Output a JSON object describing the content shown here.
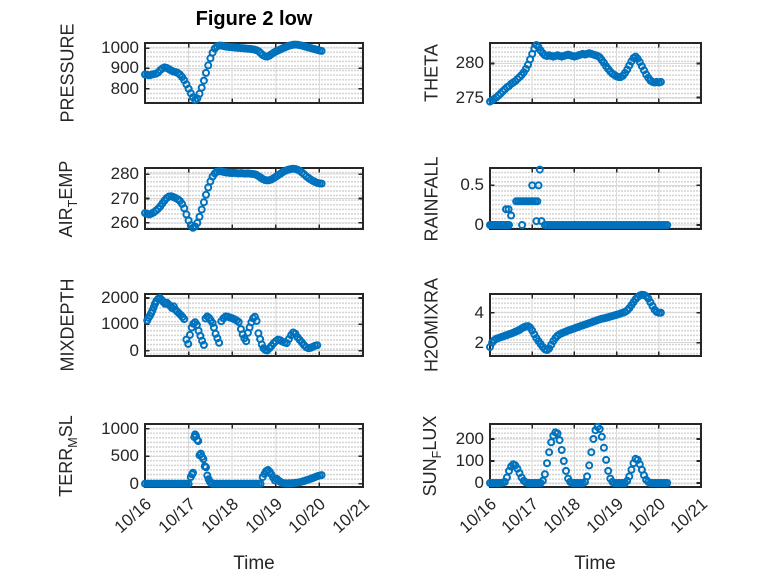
{
  "figure": {
    "title": "Figure 2 low",
    "xlabel": "Time",
    "xlim": [
      0,
      5
    ],
    "x_ticks": {
      "values": [
        0,
        1,
        2,
        3,
        4,
        5
      ],
      "labels": [
        "10/16",
        "10/17",
        "10/18",
        "10/19",
        "10/20",
        "10/21"
      ]
    },
    "marker_color": "#0072BD",
    "axis_color": "#262626",
    "grid_color": "#d9d9d9",
    "minor_dot_color": "#c7c7c7",
    "text_color": "#262626",
    "background": "#ffffff",
    "marker_style": "open-circle",
    "grid": "on",
    "minor_grid": "dotted"
  },
  "chart_data": [
    {
      "name": "PRESSURE",
      "type": "scatter",
      "row": 0,
      "col": 0,
      "ylabel_parts": [
        [
          "PRESSURE",
          false
        ]
      ],
      "ylim": [
        730,
        1025
      ],
      "yticks": [
        800,
        900,
        1000
      ],
      "x0": 0,
      "dx": 0.05,
      "y": [
        870,
        868,
        866,
        869,
        872,
        874,
        880,
        892,
        900,
        905,
        902,
        896,
        890,
        885,
        882,
        878,
        870,
        858,
        842,
        822,
        800,
        778,
        758,
        745,
        752,
        775,
        805,
        840,
        878,
        915,
        950,
        978,
        998,
        1008,
        1012,
        1012,
        1010,
        1008,
        1006,
        1005,
        1004,
        1003,
        1002,
        1001,
        1000,
        999,
        998,
        997,
        996,
        995,
        993,
        990,
        985,
        976,
        966,
        960,
        958,
        962,
        970,
        977,
        983,
        988,
        993,
        998,
        1003,
        1007,
        1011,
        1014,
        1016,
        1017,
        1016,
        1014,
        1012,
        1009,
        1006,
        1003,
        1000,
        997,
        994,
        991,
        988,
        986
      ]
    },
    {
      "name": "THETA",
      "type": "scatter",
      "row": 0,
      "col": 1,
      "ylabel_parts": [
        [
          "THETA",
          false
        ]
      ],
      "ylim": [
        274.2,
        283.0
      ],
      "yticks": [
        275,
        280
      ],
      "x0": 0,
      "dx": 0.05,
      "y": [
        274.4,
        274.6,
        274.8,
        275.0,
        275.3,
        275.6,
        275.9,
        276.2,
        276.5,
        276.7,
        277.0,
        277.2,
        277.4,
        277.7,
        278.0,
        278.3,
        278.7,
        279.2,
        279.8,
        280.6,
        281.4,
        282.2,
        282.7,
        282.4,
        281.9,
        281.5,
        281.2,
        281.1,
        281.2,
        281.1,
        281.0,
        281.1,
        281.2,
        281.1,
        281.0,
        281.1,
        281.2,
        281.3,
        281.2,
        281.1,
        281.0,
        281.1,
        281.2,
        281.3,
        281.4,
        281.3,
        281.4,
        281.5,
        281.4,
        281.3,
        281.2,
        281.1,
        280.9,
        280.5,
        280.1,
        279.6,
        279.2,
        278.8,
        278.5,
        278.3,
        278.1,
        278.0,
        278.0,
        278.2,
        278.6,
        279.1,
        279.7,
        280.3,
        280.8,
        281.0,
        280.7,
        280.2,
        279.6,
        279.0,
        278.4,
        277.9,
        277.5,
        277.3,
        277.2,
        277.3,
        277.2,
        277.3
      ]
    },
    {
      "name": "AIR_TEMP",
      "type": "scatter",
      "row": 1,
      "col": 0,
      "ylabel_parts": [
        [
          "AIR",
          false
        ],
        [
          "T",
          true
        ],
        [
          "EMP",
          false
        ]
      ],
      "ylim": [
        257.5,
        282.5
      ],
      "yticks": [
        260,
        270,
        280
      ],
      "x0": 0,
      "dx": 0.05,
      "y": [
        264.0,
        263.7,
        263.5,
        263.8,
        264.3,
        265.0,
        265.8,
        266.8,
        268.0,
        269.2,
        270.2,
        270.8,
        270.9,
        270.6,
        270.2,
        269.7,
        269.0,
        267.8,
        266.0,
        263.5,
        261.0,
        259.0,
        258.0,
        258.5,
        260.0,
        262.5,
        265.5,
        268.5,
        271.5,
        274.5,
        277.0,
        279.0,
        280.3,
        281.0,
        281.2,
        281.1,
        280.9,
        280.7,
        280.6,
        280.5,
        280.4,
        280.5,
        280.4,
        280.3,
        280.4,
        280.3,
        280.2,
        280.3,
        280.2,
        280.1,
        280.0,
        279.7,
        279.2,
        278.6,
        278.0,
        277.6,
        277.4,
        277.5,
        277.8,
        278.3,
        278.9,
        279.5,
        280.1,
        280.7,
        281.2,
        281.6,
        281.9,
        282.1,
        282.2,
        282.1,
        281.8,
        281.3,
        280.6,
        279.9,
        279.1,
        278.4,
        277.8,
        277.2,
        276.8,
        276.4,
        276.2,
        276.1
      ]
    },
    {
      "name": "RAINFALL",
      "type": "scatter",
      "row": 1,
      "col": 1,
      "ylabel_parts": [
        [
          "RAINFALL",
          false
        ]
      ],
      "ylim": [
        -0.05,
        0.72
      ],
      "yticks": [
        0,
        0.5
      ],
      "runs": [
        [
          0,
          0.45,
          0.03,
          0
        ],
        [
          1.3,
          4.2,
          0.05,
          0
        ]
      ],
      "points": [
        [
          0.38,
          0.2
        ],
        [
          0.44,
          0.2
        ],
        [
          0.5,
          0.12
        ],
        [
          0.62,
          0.3
        ],
        [
          0.67,
          0.3
        ],
        [
          0.72,
          0.3
        ],
        [
          0.77,
          0.3
        ],
        [
          0.82,
          0.3
        ],
        [
          0.87,
          0.3
        ],
        [
          0.92,
          0.3
        ],
        [
          0.97,
          0.3
        ],
        [
          1.02,
          0.3
        ],
        [
          1.07,
          0.3
        ],
        [
          1.12,
          0.3
        ],
        [
          0.76,
          0
        ],
        [
          1.0,
          0.5
        ],
        [
          1.15,
          0.5
        ],
        [
          1.18,
          0.7
        ],
        [
          1.1,
          0.05
        ],
        [
          1.22,
          0.05
        ]
      ]
    },
    {
      "name": "MIXDEPTH",
      "type": "scatter",
      "row": 2,
      "col": 0,
      "ylabel_parts": [
        [
          "MIXDEPTH",
          false
        ]
      ],
      "ylim": [
        -200,
        2150
      ],
      "yticks": [
        0,
        1000,
        2000
      ],
      "points": [
        [
          0.05,
          1150
        ],
        [
          0.08,
          1250
        ],
        [
          0.11,
          1320
        ],
        [
          0.14,
          1420
        ],
        [
          0.17,
          1520
        ],
        [
          0.2,
          1650
        ],
        [
          0.23,
          1780
        ],
        [
          0.26,
          1880
        ],
        [
          0.3,
          1960
        ],
        [
          0.34,
          2000
        ],
        [
          0.38,
          1930
        ],
        [
          0.42,
          1850
        ],
        [
          0.46,
          1780
        ],
        [
          0.5,
          1820
        ],
        [
          0.54,
          1760
        ],
        [
          0.58,
          1700
        ],
        [
          0.62,
          1620
        ],
        [
          0.66,
          1680
        ],
        [
          0.7,
          1550
        ],
        [
          0.74,
          1480
        ],
        [
          0.78,
          1420
        ],
        [
          0.82,
          1350
        ],
        [
          0.86,
          1280
        ],
        [
          0.9,
          1200
        ],
        [
          0.95,
          420
        ],
        [
          0.99,
          260
        ],
        [
          1.03,
          600
        ],
        [
          1.07,
          880
        ],
        [
          1.11,
          1020
        ],
        [
          1.15,
          1080
        ],
        [
          1.19,
          980
        ],
        [
          1.23,
          760
        ],
        [
          1.27,
          560
        ],
        [
          1.31,
          380
        ],
        [
          1.35,
          220
        ],
        [
          1.39,
          1220
        ],
        [
          1.43,
          1300
        ],
        [
          1.47,
          1240
        ],
        [
          1.51,
          1150
        ],
        [
          1.55,
          1050
        ],
        [
          1.58,
          880
        ],
        [
          1.62,
          640
        ],
        [
          1.66,
          470
        ],
        [
          1.7,
          300
        ],
        [
          1.75,
          1120
        ],
        [
          1.8,
          1230
        ],
        [
          1.85,
          1300
        ],
        [
          1.9,
          1290
        ],
        [
          1.95,
          1260
        ],
        [
          2.0,
          1230
        ],
        [
          2.05,
          1190
        ],
        [
          2.1,
          1150
        ],
        [
          2.15,
          1090
        ],
        [
          2.2,
          820
        ],
        [
          2.24,
          620
        ],
        [
          2.28,
          470
        ],
        [
          2.32,
          360
        ],
        [
          2.36,
          680
        ],
        [
          2.4,
          880
        ],
        [
          2.44,
          1080
        ],
        [
          2.48,
          1230
        ],
        [
          2.52,
          1290
        ],
        [
          2.56,
          1130
        ],
        [
          2.6,
          660
        ],
        [
          2.64,
          440
        ],
        [
          2.68,
          240
        ],
        [
          2.72,
          90
        ],
        [
          2.76,
          30
        ],
        [
          2.8,
          10
        ],
        [
          2.85,
          90
        ],
        [
          2.9,
          180
        ],
        [
          2.95,
          280
        ],
        [
          3.0,
          360
        ],
        [
          3.05,
          420
        ],
        [
          3.1,
          400
        ],
        [
          3.15,
          350
        ],
        [
          3.2,
          310
        ],
        [
          3.25,
          290
        ],
        [
          3.3,
          440
        ],
        [
          3.35,
          590
        ],
        [
          3.4,
          690
        ],
        [
          3.45,
          640
        ],
        [
          3.5,
          510
        ],
        [
          3.55,
          410
        ],
        [
          3.6,
          310
        ],
        [
          3.65,
          210
        ],
        [
          3.7,
          130
        ],
        [
          3.75,
          90
        ],
        [
          3.8,
          110
        ],
        [
          3.85,
          150
        ],
        [
          3.9,
          190
        ],
        [
          3.95,
          210
        ]
      ]
    },
    {
      "name": "H2OMIXRA",
      "type": "scatter",
      "row": 2,
      "col": 1,
      "ylabel_parts": [
        [
          "H2OMIXRA",
          false
        ]
      ],
      "ylim": [
        1.1,
        5.25
      ],
      "yticks": [
        2,
        4
      ],
      "x0": 0,
      "dx": 0.05,
      "y": [
        1.7,
        2.0,
        2.15,
        2.25,
        2.3,
        2.35,
        2.4,
        2.45,
        2.5,
        2.55,
        2.6,
        2.65,
        2.72,
        2.78,
        2.85,
        2.95,
        3.02,
        3.08,
        3.1,
        3.0,
        2.8,
        2.55,
        2.3,
        2.1,
        1.9,
        1.7,
        1.55,
        1.5,
        1.6,
        1.85,
        2.1,
        2.3,
        2.45,
        2.55,
        2.62,
        2.68,
        2.74,
        2.8,
        2.85,
        2.9,
        2.95,
        3.0,
        3.05,
        3.1,
        3.15,
        3.2,
        3.25,
        3.3,
        3.35,
        3.4,
        3.45,
        3.5,
        3.55,
        3.6,
        3.62,
        3.66,
        3.7,
        3.74,
        3.78,
        3.82,
        3.86,
        3.9,
        3.95,
        4.0,
        4.05,
        4.15,
        4.3,
        4.5,
        4.7,
        4.9,
        5.05,
        5.15,
        5.2,
        5.18,
        5.1,
        4.95,
        4.7,
        4.45,
        4.2,
        4.05,
        4.0,
        4.0
      ]
    },
    {
      "name": "TERR_MSL",
      "type": "scatter",
      "row": 3,
      "col": 0,
      "ylabel_parts": [
        [
          "TERR",
          false
        ],
        [
          "M",
          true
        ],
        [
          "SL",
          false
        ]
      ],
      "ylim": [
        -60,
        1090
      ],
      "yticks": [
        0,
        500,
        1000
      ],
      "runs": [
        [
          0,
          1.0,
          0.05,
          0
        ],
        [
          1.55,
          2.65,
          0.05,
          0
        ]
      ],
      "points": [
        [
          1.05,
          120
        ],
        [
          1.08,
          170
        ],
        [
          1.1,
          200
        ],
        [
          1.13,
          850
        ],
        [
          1.15,
          900
        ],
        [
          1.17,
          870
        ],
        [
          1.2,
          800
        ],
        [
          1.22,
          780
        ],
        [
          1.25,
          520
        ],
        [
          1.28,
          550
        ],
        [
          1.31,
          490
        ],
        [
          1.34,
          450
        ],
        [
          1.37,
          320
        ],
        [
          1.4,
          300
        ],
        [
          1.43,
          150
        ],
        [
          1.46,
          80
        ],
        [
          1.49,
          30
        ],
        [
          1.52,
          15
        ],
        [
          2.7,
          120
        ],
        [
          2.74,
          180
        ],
        [
          2.78,
          230
        ],
        [
          2.82,
          250
        ],
        [
          2.86,
          220
        ],
        [
          2.9,
          170
        ],
        [
          2.94,
          110
        ],
        [
          2.98,
          60
        ],
        [
          3.02,
          90
        ],
        [
          3.06,
          60
        ],
        [
          3.1,
          35
        ],
        [
          3.15,
          15
        ],
        [
          3.2,
          8
        ],
        [
          3.25,
          5
        ],
        [
          3.3,
          8
        ],
        [
          3.35,
          10
        ],
        [
          3.4,
          12
        ],
        [
          3.45,
          15
        ],
        [
          3.5,
          20
        ],
        [
          3.55,
          28
        ],
        [
          3.6,
          38
        ],
        [
          3.65,
          50
        ],
        [
          3.7,
          62
        ],
        [
          3.75,
          75
        ],
        [
          3.8,
          90
        ],
        [
          3.85,
          105
        ],
        [
          3.9,
          120
        ],
        [
          3.95,
          135
        ],
        [
          4.0,
          148
        ],
        [
          4.05,
          158
        ]
      ]
    },
    {
      "name": "SUN_FLUX",
      "type": "scatter",
      "row": 3,
      "col": 1,
      "ylabel_parts": [
        [
          "SUN",
          false
        ],
        [
          "F",
          true
        ],
        [
          "LUX",
          false
        ]
      ],
      "ylim": [
        -18,
        268
      ],
      "yticks": [
        0,
        100,
        200
      ],
      "x0": 0,
      "dx": 0.05,
      "y": [
        0,
        0,
        0,
        0,
        0,
        0,
        2,
        5,
        25,
        55,
        75,
        85,
        80,
        65,
        45,
        25,
        10,
        3,
        0,
        0,
        0,
        0,
        0,
        0,
        0,
        10,
        40,
        90,
        140,
        185,
        215,
        230,
        225,
        195,
        150,
        100,
        55,
        20,
        5,
        0,
        0,
        0,
        0,
        0,
        0,
        5,
        30,
        80,
        140,
        200,
        240,
        255,
        245,
        210,
        160,
        105,
        55,
        20,
        5,
        0,
        0,
        0,
        0,
        0,
        0,
        10,
        30,
        60,
        90,
        110,
        105,
        85,
        60,
        35,
        15,
        5,
        0,
        0,
        0,
        0,
        0,
        0,
        0,
        0,
        0
      ]
    }
  ]
}
